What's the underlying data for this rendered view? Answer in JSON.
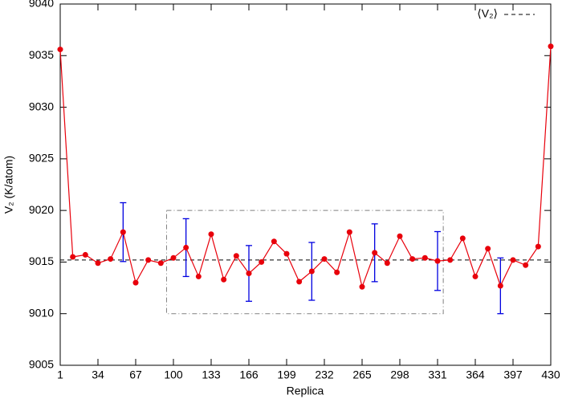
{
  "chart_data": {
    "type": "line",
    "xlabel": "Replica",
    "ylabel": "V₂ (K/atom)",
    "xlim": [
      1,
      430
    ],
    "ylim": [
      9005,
      9040
    ],
    "xticks": [
      1,
      34,
      67,
      100,
      133,
      166,
      199,
      232,
      265,
      298,
      331,
      364,
      397,
      430
    ],
    "yticks": [
      9005,
      9010,
      9015,
      9020,
      9025,
      9030,
      9035,
      9040
    ],
    "x": [
      1,
      12,
      23,
      34,
      45,
      56,
      67,
      78,
      89,
      100,
      111,
      122,
      133,
      144,
      155,
      166,
      177,
      188,
      199,
      210,
      221,
      232,
      243,
      254,
      265,
      276,
      287,
      298,
      309,
      320,
      331,
      342,
      353,
      364,
      375,
      386,
      397,
      408,
      419,
      430
    ],
    "series": [
      {
        "color": "#e8000b",
        "error_color": "#0000e0",
        "values": [
          9035.6,
          9015.5,
          9015.7,
          9014.9,
          9015.3,
          9017.9,
          9013.0,
          9015.2,
          9014.9,
          9015.4,
          9016.4,
          9013.6,
          9017.7,
          9013.3,
          9015.6,
          9013.9,
          9015.0,
          9017.0,
          9015.8,
          9013.1,
          9014.1,
          9015.3,
          9014.0,
          9017.9,
          9012.6,
          9015.9,
          9014.9,
          9017.5,
          9015.3,
          9015.4,
          9015.1,
          9015.2,
          9017.3,
          9013.6,
          9016.3,
          9012.7,
          9015.2,
          9014.7,
          9016.5,
          9035.9
        ],
        "errors": [
          null,
          null,
          null,
          null,
          null,
          2.85,
          null,
          null,
          null,
          null,
          2.8,
          null,
          null,
          null,
          null,
          2.7,
          null,
          null,
          null,
          null,
          2.8,
          null,
          null,
          null,
          null,
          2.8,
          null,
          null,
          null,
          null,
          2.85,
          null,
          null,
          null,
          null,
          2.7,
          null,
          null,
          null,
          null
        ]
      }
    ],
    "mean": {
      "name": "⟨V₂⟩",
      "value": 9015.2,
      "color": "#000000"
    },
    "highlight_box": {
      "x": [
        94,
        336
      ],
      "y": [
        9010,
        9020
      ],
      "color": "#808080"
    }
  }
}
